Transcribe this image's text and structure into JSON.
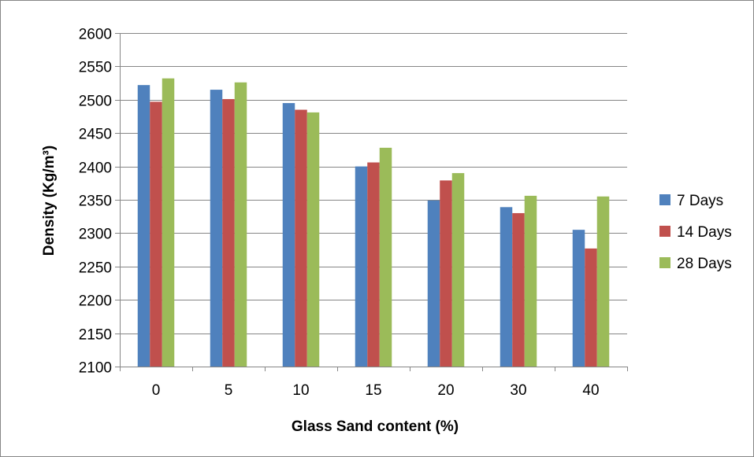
{
  "chart_data": {
    "type": "bar",
    "title": "",
    "xlabel": "Glass Sand content (%)",
    "ylabel": "Density (Kg/m³)",
    "categories": [
      "0",
      "5",
      "10",
      "15",
      "20",
      "30",
      "40"
    ],
    "ylim": [
      2100,
      2600
    ],
    "yticks": [
      2100,
      2150,
      2200,
      2250,
      2300,
      2350,
      2400,
      2450,
      2500,
      2550,
      2600
    ],
    "grid": true,
    "legend_position": "right",
    "series": [
      {
        "name": "7 Days",
        "color": "#4f81bd",
        "values": [
          2522,
          2515,
          2495,
          2400,
          2349,
          2339,
          2305
        ]
      },
      {
        "name": "14 Days",
        "color": "#c0504d",
        "values": [
          2497,
          2501,
          2485,
          2406,
          2379,
          2330,
          2277
        ]
      },
      {
        "name": "28 Days",
        "color": "#9bbb59",
        "values": [
          2532,
          2526,
          2481,
          2428,
          2390,
          2356,
          2355
        ]
      }
    ]
  }
}
